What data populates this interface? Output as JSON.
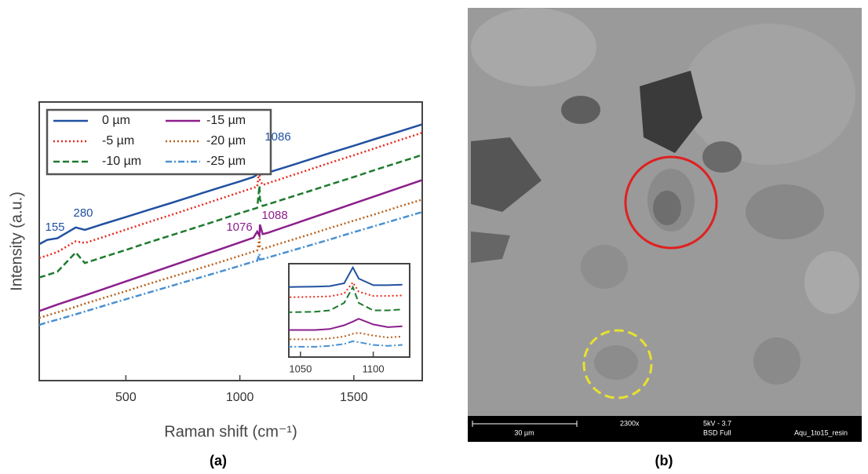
{
  "chart_data": [
    {
      "type": "line",
      "ylabel": "Intensity (a.u.)",
      "xlabel": "Raman shift (cm⁻¹)",
      "xlim": [
        120,
        1800
      ],
      "ylim": [
        0,
        100
      ],
      "xticks": [
        500,
        1000,
        1500
      ],
      "legend": "top-left",
      "x": [
        120,
        155,
        200,
        280,
        320,
        400,
        500,
        600,
        700,
        800,
        900,
        1000,
        1060,
        1076,
        1086,
        1088,
        1100,
        1120,
        1200,
        1300,
        1400,
        1500,
        1600,
        1700,
        1800
      ],
      "series": [
        {
          "name": "0 µm",
          "color": "#2151a1",
          "dash": "solid",
          "values": [
            49,
            50.5,
            51.1,
            55,
            54.1,
            56.2,
            58.7,
            61.3,
            63.8,
            66.4,
            69,
            71.5,
            73.1,
            74,
            91.5,
            78,
            74.1,
            74.6,
            76.6,
            79.2,
            81.8,
            84.3,
            86.9,
            89.4,
            92
          ]
        },
        {
          "name": "-5 µm",
          "color": "#e8281c",
          "dash": "dotted",
          "values": [
            44,
            44.9,
            46.2,
            50,
            49.4,
            51.5,
            54.2,
            56.9,
            59.5,
            62.2,
            64.9,
            67.6,
            69.2,
            69.6,
            76,
            72,
            70.2,
            70.8,
            72.9,
            75.6,
            78.3,
            80.9,
            83.6,
            86.3,
            89
          ]
        },
        {
          "name": "-10 µm",
          "color": "#1d7a2e",
          "dash": "dashed",
          "values": [
            37,
            37.9,
            39.1,
            46,
            42.2,
            44.3,
            46.9,
            49.6,
            52.2,
            54.8,
            57.4,
            60.1,
            61.6,
            62,
            70,
            65,
            62.7,
            63.2,
            65.3,
            67.9,
            70.5,
            73.1,
            75.8,
            78.4,
            81
          ]
        },
        {
          "name": "-15 µm",
          "color": "#8b1f8c",
          "dash": "solid",
          "values": [
            25,
            26,
            27.3,
            29.5,
            30.6,
            32.8,
            35.6,
            38.4,
            41.2,
            44,
            46.8,
            49.6,
            51.3,
            53.5,
            52,
            56,
            52.6,
            53,
            55.2,
            58,
            60.8,
            63.6,
            66.4,
            69.2,
            72
          ]
        },
        {
          "name": "-20 µm",
          "color": "#b8601a",
          "dash": "dotted",
          "values": [
            22.5,
            23.4,
            24.5,
            26.5,
            27.6,
            29.6,
            32.1,
            34.7,
            37.2,
            39.7,
            42.2,
            44.8,
            46.3,
            46.7,
            51,
            48,
            47.3,
            47.8,
            49.8,
            52.3,
            54.9,
            57.4,
            59.9,
            62.5,
            65
          ]
        },
        {
          "name": "-25 µm",
          "color": "#4a90d0",
          "dash": "dashdot",
          "values": [
            20,
            20.9,
            21.9,
            23.8,
            24.8,
            26.8,
            29.2,
            31.6,
            34,
            36.4,
            38.8,
            41.2,
            42.7,
            43,
            45.5,
            43.5,
            43.6,
            44.1,
            46,
            48.4,
            50.8,
            53.3,
            55.7,
            58.1,
            60.5
          ]
        }
      ],
      "annotations": [
        {
          "text": "155",
          "color": "#2151a1"
        },
        {
          "text": "280",
          "color": "#2151a1"
        },
        {
          "text": "1086",
          "color": "#2151a1"
        },
        {
          "text": "1076",
          "color": "#8b1f8c"
        },
        {
          "text": "1088",
          "color": "#8b1f8c"
        }
      ]
    },
    {
      "type": "line",
      "xlim": [
        1042,
        1125
      ],
      "ylim": [
        0,
        100
      ],
      "xticks": [
        1050,
        1100
      ],
      "x": [
        1040,
        1060,
        1070,
        1080,
        1086,
        1090,
        1100,
        1110,
        1120
      ],
      "series": [
        {
          "color": "#2151a1",
          "dash": "solid",
          "values": [
            75,
            75.5,
            76,
            79,
            96,
            84,
            77,
            77,
            77.5
          ]
        },
        {
          "color": "#e8281c",
          "dash": "dotted",
          "values": [
            64,
            64.5,
            65,
            68,
            80,
            70,
            65.5,
            65.5,
            66
          ]
        },
        {
          "color": "#1d7a2e",
          "dash": "dashed",
          "values": [
            48,
            48.5,
            50,
            58,
            75,
            58,
            50,
            50,
            51
          ]
        },
        {
          "color": "#8b1f8c",
          "dash": "solid",
          "values": [
            29,
            29,
            30,
            34,
            38,
            41,
            35,
            32,
            33
          ]
        },
        {
          "color": "#b8601a",
          "dash": "dotted",
          "values": [
            19,
            19,
            20,
            22,
            25,
            26,
            23,
            21,
            22
          ]
        },
        {
          "color": "#4a90d0",
          "dash": "dashdot",
          "values": [
            11,
            11,
            12,
            14,
            17,
            16,
            13,
            12,
            13
          ]
        }
      ]
    }
  ],
  "figure": {
    "label_a": "(a)",
    "label_b": "(b)",
    "sem": {
      "scale_bar": "30 µm",
      "magnification": "2300x",
      "voltage": "5kV - 3.7",
      "detector": "BSD Full",
      "sample": "Aqu_1to15_resin"
    }
  }
}
